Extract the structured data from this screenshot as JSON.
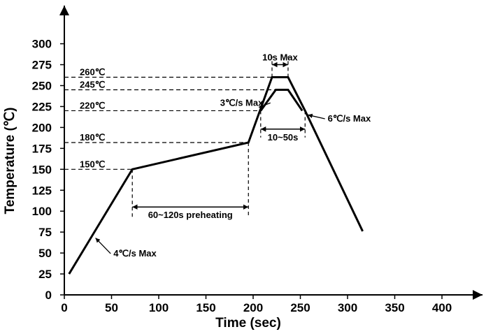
{
  "chart_data": {
    "type": "line",
    "xlabel": "Time (sec)",
    "ylabel": "Temperature (℃)",
    "xlim": [
      0,
      440
    ],
    "ylim": [
      0,
      330
    ],
    "xticks": [
      0,
      50,
      100,
      150,
      200,
      250,
      300,
      350,
      400
    ],
    "yticks": [
      0,
      25,
      50,
      75,
      100,
      125,
      150,
      175,
      200,
      225,
      250,
      275,
      300
    ],
    "x_tick_labels": [
      "0",
      "50",
      "100",
      "150",
      "200",
      "250",
      "300",
      "350",
      "400"
    ],
    "y_tick_labels": [
      "0",
      "25",
      "50",
      "75",
      "100",
      "125",
      "150",
      "175",
      "200",
      "225",
      "250",
      "275",
      "300"
    ],
    "grid": false,
    "series": [
      {
        "x": [
          5,
          72,
          195,
          220,
          237,
          255,
          316
        ],
        "y": [
          25,
          150,
          182,
          260,
          260,
          220,
          76
        ]
      },
      {
        "x": [
          208,
          224,
          237,
          252
        ],
        "y": [
          220,
          245,
          245,
          220
        ]
      }
    ],
    "reference_lines": [
      {
        "label": "260℃",
        "y": 260,
        "x_end": 220
      },
      {
        "label": "245℃",
        "y": 245,
        "x_end": 224
      },
      {
        "label": "220℃",
        "y": 220,
        "x_end": 208
      },
      {
        "label": "180℃",
        "y": 182,
        "x_end": 195
      },
      {
        "label": "150℃",
        "y": 150,
        "x_end": 72
      }
    ],
    "dimensions": [
      {
        "label": "60~120s preheating",
        "x_start": 72,
        "x_end": 195,
        "y": 105
      },
      {
        "label": "10~50s",
        "x_start": 208,
        "x_end": 255,
        "y": 198
      },
      {
        "label": "10s Max",
        "x_start": 220,
        "x_end": 237,
        "y": 275
      }
    ],
    "annotations": [
      {
        "label": "4℃/s Max",
        "text_x": 52,
        "text_y": 46,
        "arrow_x": 33,
        "arrow_y": 68
      },
      {
        "label": "3℃/s Max",
        "text_x": 165,
        "text_y": 226,
        "arrow_x": 206,
        "arrow_y": 224
      },
      {
        "label": "6℃/s Max",
        "text_x": 279,
        "text_y": 207,
        "arrow_x": 258,
        "arrow_y": 215
      }
    ]
  }
}
